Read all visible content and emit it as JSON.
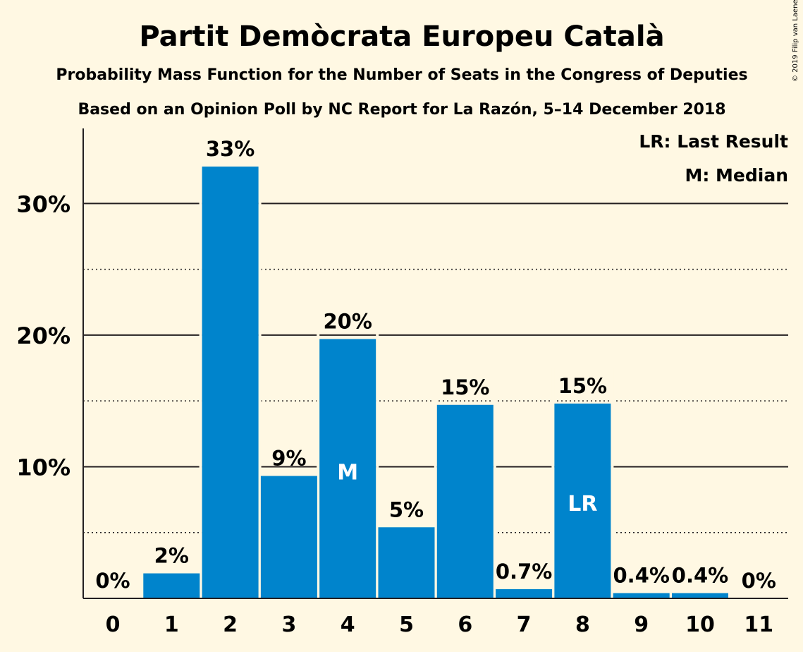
{
  "chart_data": {
    "type": "bar",
    "title": "Partit Demòcrata Europeu Català",
    "subtitle": "Probability Mass Function for the Number of Seats in the Congress of Deputies",
    "subtitle2": "Based on an Opinion Poll by NC Report for La Razón, 5–14 December 2018",
    "copyright": "© 2019 Filip van Laenen",
    "categories": [
      "0",
      "1",
      "2",
      "3",
      "4",
      "5",
      "6",
      "7",
      "8",
      "9",
      "10",
      "11"
    ],
    "values": [
      0,
      1.9,
      32.8,
      9.3,
      19.7,
      5.4,
      14.7,
      0.7,
      14.8,
      0.4,
      0.4,
      0
    ],
    "value_labels": [
      "0%",
      "2%",
      "33%",
      "9%",
      "20%",
      "5%",
      "15%",
      "0.7%",
      "15%",
      "0.4%",
      "0.4%",
      "0%"
    ],
    "median_seat": "4",
    "median_marker": "M",
    "last_result_seat": "8",
    "last_result_marker": "LR",
    "legend": [
      "LR: Last Result",
      "M: Median"
    ],
    "legend_position": "top-right",
    "yticks": [
      10,
      20,
      30
    ],
    "ytick_labels": [
      "10%",
      "20%",
      "30%"
    ],
    "yminor": [
      5,
      15,
      25
    ],
    "ylim": [
      0,
      35.7
    ],
    "bar_color": "#0084CC",
    "grid": true
  }
}
